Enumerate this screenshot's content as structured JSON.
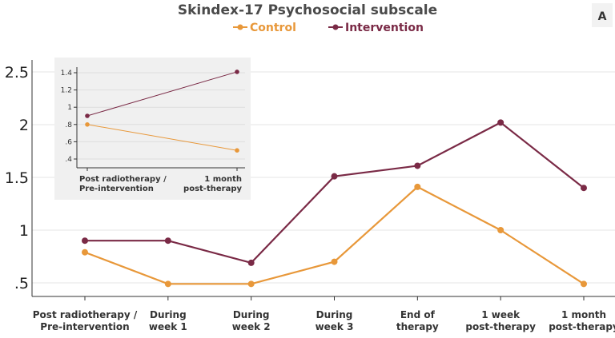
{
  "chart_data": [
    {
      "type": "line",
      "title": "Skindex-17 Psychosocial subscale",
      "panel_label": "A",
      "categories": [
        [
          "Post radiotherapy /",
          "Pre-intervention"
        ],
        [
          "During",
          "week 1"
        ],
        [
          "During",
          "week 2"
        ],
        [
          "During",
          "week 3"
        ],
        [
          "End of",
          "therapy"
        ],
        [
          "1 week",
          "post-therapy"
        ],
        [
          "1 month",
          "post-therapy"
        ]
      ],
      "series": [
        {
          "name": "Control",
          "color": "#e8983a",
          "values": [
            0.79,
            0.49,
            0.49,
            0.7,
            1.41,
            1.0,
            0.49
          ]
        },
        {
          "name": "Intervention",
          "color": "#7a2a46",
          "values": [
            0.9,
            0.9,
            0.69,
            1.51,
            1.61,
            2.02,
            1.4
          ]
        }
      ],
      "ylim": [
        0.4,
        2.6
      ],
      "yticks": [
        0.5,
        1,
        1.5,
        2,
        2.5
      ],
      "ytick_labels": [
        ".5",
        "1",
        "1.5",
        "2",
        "2.5"
      ],
      "xlabel": "",
      "ylabel": "",
      "legend": "top-center",
      "grid": "horizontal"
    },
    {
      "type": "line",
      "role": "inset",
      "categories": [
        [
          "Post radiotherapy /",
          "Pre-intervention"
        ],
        [
          "1 month",
          "post-therapy"
        ]
      ],
      "series": [
        {
          "name": "Control",
          "color": "#e8983a",
          "values": [
            0.8,
            0.5
          ]
        },
        {
          "name": "Intervention",
          "color": "#7a2a46",
          "values": [
            0.9,
            1.41
          ]
        }
      ],
      "ylim": [
        0.33,
        1.5
      ],
      "yticks": [
        0.4,
        0.6,
        0.8,
        1,
        1.2,
        1.4
      ],
      "ytick_labels": [
        ".4",
        ".6",
        ".8",
        "1",
        "1.2",
        "1.4"
      ],
      "grid": "horizontal"
    }
  ]
}
